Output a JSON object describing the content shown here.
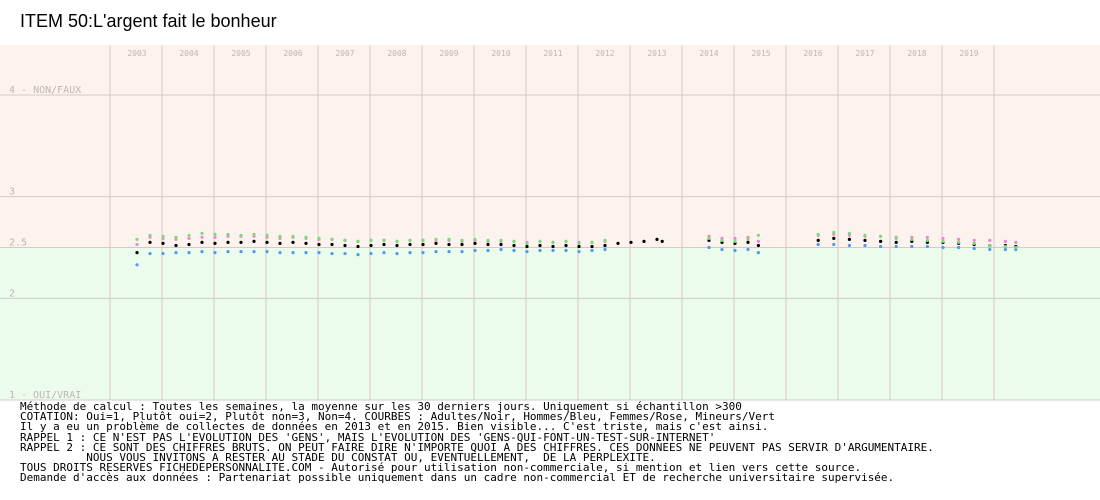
{
  "title": "ITEM 50:L'argent fait le bonheur",
  "chart_data": {
    "type": "scatter",
    "title": "ITEM 50:L'argent fait le bonheur",
    "xlabel": "",
    "ylabel": "",
    "x_ticks": [
      "2003",
      "2004",
      "2005",
      "2006",
      "2007",
      "2008",
      "2009",
      "2010",
      "2011",
      "2012",
      "2013",
      "2014",
      "2015",
      "2016",
      "2017",
      "2018",
      "2019"
    ],
    "y_ticks": [
      {
        "value": 4,
        "label": "4 - NON/FAUX"
      },
      {
        "value": 3,
        "label": "3"
      },
      {
        "value": 2.5,
        "label": "2.5"
      },
      {
        "value": 2,
        "label": "2"
      },
      {
        "value": 1,
        "label": "1 - OUI/VRAI"
      }
    ],
    "xlim": [
      2002.5,
      2020.0
    ],
    "ylim": [
      1.0,
      4.0
    ],
    "grid": true,
    "neutral_line": 2.5,
    "colors": {
      "top_band": "#fdf3ee",
      "bottom_band": "#ecfcec",
      "grid": "#d8c8c8",
      "tick_text": "#c0b4b4"
    },
    "series": [
      {
        "name": "Adultes/Noir",
        "color": "#000000",
        "points": [
          [
            2003.0,
            2.45
          ],
          [
            2003.25,
            2.55
          ],
          [
            2003.5,
            2.54
          ],
          [
            2003.75,
            2.52
          ],
          [
            2004.0,
            2.53
          ],
          [
            2004.25,
            2.55
          ],
          [
            2004.5,
            2.54
          ],
          [
            2004.75,
            2.55
          ],
          [
            2005.0,
            2.55
          ],
          [
            2005.25,
            2.56
          ],
          [
            2005.5,
            2.55
          ],
          [
            2005.75,
            2.54
          ],
          [
            2006.0,
            2.55
          ],
          [
            2006.25,
            2.54
          ],
          [
            2006.5,
            2.53
          ],
          [
            2006.75,
            2.53
          ],
          [
            2007.0,
            2.52
          ],
          [
            2007.25,
            2.51
          ],
          [
            2007.5,
            2.52
          ],
          [
            2007.75,
            2.53
          ],
          [
            2008.0,
            2.52
          ],
          [
            2008.25,
            2.53
          ],
          [
            2008.5,
            2.53
          ],
          [
            2008.75,
            2.54
          ],
          [
            2009.0,
            2.53
          ],
          [
            2009.25,
            2.53
          ],
          [
            2009.5,
            2.54
          ],
          [
            2009.75,
            2.53
          ],
          [
            2010.0,
            2.53
          ],
          [
            2010.25,
            2.52
          ],
          [
            2010.5,
            2.51
          ],
          [
            2010.75,
            2.52
          ],
          [
            2011.0,
            2.51
          ],
          [
            2011.25,
            2.52
          ],
          [
            2011.5,
            2.51
          ],
          [
            2011.75,
            2.51
          ],
          [
            2012.0,
            2.52
          ],
          [
            2012.25,
            2.54
          ],
          [
            2012.5,
            2.55
          ],
          [
            2012.75,
            2.56
          ],
          [
            2013.0,
            2.58
          ],
          [
            2013.1,
            2.56
          ],
          [
            2014.0,
            2.57
          ],
          [
            2014.25,
            2.55
          ],
          [
            2014.5,
            2.54
          ],
          [
            2014.75,
            2.55
          ],
          [
            2014.95,
            2.52
          ],
          [
            2016.1,
            2.57
          ],
          [
            2016.4,
            2.59
          ],
          [
            2016.7,
            2.58
          ],
          [
            2017.0,
            2.57
          ],
          [
            2017.3,
            2.56
          ],
          [
            2017.6,
            2.55
          ],
          [
            2017.9,
            2.56
          ],
          [
            2018.2,
            2.55
          ],
          [
            2018.5,
            2.55
          ],
          [
            2018.8,
            2.54
          ],
          [
            2019.1,
            2.53
          ],
          [
            2019.4,
            2.52
          ],
          [
            2019.7,
            2.52
          ],
          [
            2019.9,
            2.51
          ]
        ]
      },
      {
        "name": "Hommes/Bleu",
        "color": "#5599ee",
        "points": [
          [
            2003.0,
            2.33
          ],
          [
            2003.25,
            2.44
          ],
          [
            2003.5,
            2.44
          ],
          [
            2003.75,
            2.45
          ],
          [
            2004.0,
            2.45
          ],
          [
            2004.25,
            2.46
          ],
          [
            2004.5,
            2.45
          ],
          [
            2004.75,
            2.46
          ],
          [
            2005.0,
            2.46
          ],
          [
            2005.25,
            2.46
          ],
          [
            2005.5,
            2.46
          ],
          [
            2005.75,
            2.45
          ],
          [
            2006.0,
            2.45
          ],
          [
            2006.25,
            2.45
          ],
          [
            2006.5,
            2.45
          ],
          [
            2006.75,
            2.44
          ],
          [
            2007.0,
            2.44
          ],
          [
            2007.25,
            2.43
          ],
          [
            2007.5,
            2.44
          ],
          [
            2007.75,
            2.45
          ],
          [
            2008.0,
            2.44
          ],
          [
            2008.25,
            2.45
          ],
          [
            2008.5,
            2.45
          ],
          [
            2008.75,
            2.46
          ],
          [
            2009.0,
            2.46
          ],
          [
            2009.25,
            2.46
          ],
          [
            2009.5,
            2.47
          ],
          [
            2009.75,
            2.47
          ],
          [
            2010.0,
            2.48
          ],
          [
            2010.25,
            2.47
          ],
          [
            2010.5,
            2.46
          ],
          [
            2010.75,
            2.47
          ],
          [
            2011.0,
            2.47
          ],
          [
            2011.25,
            2.47
          ],
          [
            2011.5,
            2.46
          ],
          [
            2011.75,
            2.47
          ],
          [
            2012.0,
            2.48
          ],
          [
            2014.0,
            2.5
          ],
          [
            2014.25,
            2.48
          ],
          [
            2014.5,
            2.47
          ],
          [
            2014.75,
            2.48
          ],
          [
            2014.95,
            2.45
          ],
          [
            2016.1,
            2.53
          ],
          [
            2016.4,
            2.53
          ],
          [
            2016.7,
            2.52
          ],
          [
            2017.0,
            2.52
          ],
          [
            2017.3,
            2.51
          ],
          [
            2017.6,
            2.51
          ],
          [
            2017.9,
            2.51
          ],
          [
            2018.2,
            2.51
          ],
          [
            2018.5,
            2.5
          ],
          [
            2018.8,
            2.5
          ],
          [
            2019.1,
            2.49
          ],
          [
            2019.4,
            2.48
          ],
          [
            2019.7,
            2.48
          ],
          [
            2019.9,
            2.48
          ]
        ]
      },
      {
        "name": "Femmes/Rose",
        "color": "#ee88cc",
        "points": [
          [
            2003.0,
            2.53
          ],
          [
            2003.25,
            2.6
          ],
          [
            2003.5,
            2.59
          ],
          [
            2003.75,
            2.58
          ],
          [
            2004.0,
            2.59
          ],
          [
            2004.25,
            2.6
          ],
          [
            2004.5,
            2.6
          ],
          [
            2004.75,
            2.61
          ],
          [
            2005.0,
            2.61
          ],
          [
            2005.25,
            2.61
          ],
          [
            2005.5,
            2.6
          ],
          [
            2005.75,
            2.59
          ],
          [
            2006.0,
            2.6
          ],
          [
            2006.25,
            2.59
          ],
          [
            2006.5,
            2.58
          ],
          [
            2006.75,
            2.58
          ],
          [
            2007.0,
            2.57
          ],
          [
            2007.25,
            2.56
          ],
          [
            2007.5,
            2.57
          ],
          [
            2007.75,
            2.57
          ],
          [
            2008.0,
            2.56
          ],
          [
            2008.25,
            2.57
          ],
          [
            2008.5,
            2.57
          ],
          [
            2008.75,
            2.57
          ],
          [
            2009.0,
            2.57
          ],
          [
            2009.25,
            2.56
          ],
          [
            2009.5,
            2.57
          ],
          [
            2009.75,
            2.56
          ],
          [
            2010.0,
            2.56
          ],
          [
            2010.25,
            2.56
          ],
          [
            2010.5,
            2.55
          ],
          [
            2010.75,
            2.56
          ],
          [
            2011.0,
            2.55
          ],
          [
            2011.25,
            2.56
          ],
          [
            2011.5,
            2.55
          ],
          [
            2011.75,
            2.55
          ],
          [
            2012.0,
            2.56
          ],
          [
            2014.0,
            2.61
          ],
          [
            2014.25,
            2.59
          ],
          [
            2014.5,
            2.59
          ],
          [
            2014.75,
            2.6
          ],
          [
            2014.95,
            2.56
          ],
          [
            2016.1,
            2.62
          ],
          [
            2016.4,
            2.63
          ],
          [
            2016.7,
            2.62
          ],
          [
            2017.0,
            2.61
          ],
          [
            2017.3,
            2.61
          ],
          [
            2017.6,
            2.6
          ],
          [
            2017.9,
            2.6
          ],
          [
            2018.2,
            2.6
          ],
          [
            2018.5,
            2.59
          ],
          [
            2018.8,
            2.58
          ],
          [
            2019.1,
            2.57
          ],
          [
            2019.4,
            2.57
          ],
          [
            2019.7,
            2.56
          ],
          [
            2019.9,
            2.55
          ]
        ]
      },
      {
        "name": "Mineurs/Vert",
        "color": "#77dd77",
        "points": [
          [
            2003.0,
            2.58
          ],
          [
            2003.25,
            2.62
          ],
          [
            2003.5,
            2.61
          ],
          [
            2003.75,
            2.6
          ],
          [
            2004.0,
            2.62
          ],
          [
            2004.25,
            2.64
          ],
          [
            2004.5,
            2.63
          ],
          [
            2004.75,
            2.63
          ],
          [
            2005.0,
            2.62
          ],
          [
            2005.25,
            2.63
          ],
          [
            2005.5,
            2.62
          ],
          [
            2005.75,
            2.61
          ],
          [
            2006.0,
            2.61
          ],
          [
            2006.25,
            2.6
          ],
          [
            2006.5,
            2.59
          ],
          [
            2006.75,
            2.58
          ],
          [
            2007.0,
            2.57
          ],
          [
            2007.25,
            2.56
          ],
          [
            2007.5,
            2.57
          ],
          [
            2007.75,
            2.57
          ],
          [
            2008.0,
            2.56
          ],
          [
            2008.25,
            2.57
          ],
          [
            2008.5,
            2.57
          ],
          [
            2008.75,
            2.58
          ],
          [
            2009.0,
            2.58
          ],
          [
            2009.25,
            2.57
          ],
          [
            2009.5,
            2.58
          ],
          [
            2009.75,
            2.57
          ],
          [
            2010.0,
            2.57
          ],
          [
            2010.25,
            2.56
          ],
          [
            2010.5,
            2.54
          ],
          [
            2010.75,
            2.56
          ],
          [
            2011.0,
            2.55
          ],
          [
            2011.25,
            2.56
          ],
          [
            2011.5,
            2.54
          ],
          [
            2011.75,
            2.55
          ],
          [
            2012.0,
            2.57
          ],
          [
            2014.0,
            2.59
          ],
          [
            2014.25,
            2.57
          ],
          [
            2014.5,
            2.56
          ],
          [
            2014.75,
            2.58
          ],
          [
            2014.95,
            2.62
          ],
          [
            2016.1,
            2.63
          ],
          [
            2016.4,
            2.65
          ],
          [
            2016.7,
            2.64
          ],
          [
            2017.0,
            2.62
          ],
          [
            2017.3,
            2.61
          ],
          [
            2017.6,
            2.59
          ],
          [
            2017.9,
            2.58
          ],
          [
            2018.2,
            2.57
          ],
          [
            2018.5,
            2.56
          ],
          [
            2018.8,
            2.55
          ],
          [
            2019.1,
            2.54
          ],
          [
            2019.4,
            2.52
          ],
          [
            2019.7,
            2.51
          ],
          [
            2019.9,
            2.5
          ]
        ]
      }
    ]
  },
  "notes": [
    "Méthode de calcul : Toutes les semaines, la moyenne sur les 30 derniers jours. Uniquement si échantillon >300",
    "COTATION: Oui=1, Plutôt oui=2, Plutôt non=3, Non=4. COURBES : Adultes/Noir, Hommes/Bleu, Femmes/Rose, Mineurs/Vert",
    "Il y a eu un problème de collectes de données en 2013 et en 2015. Bien visible... C'est triste, mais c'est ainsi.",
    "RAPPEL 1 : CE N'EST PAS L'EVOLUTION DES 'GENS', MAIS L'EVOLUTION DES 'GENS-QUI-FONT-UN-TEST-SUR-INTERNET'",
    "RAPPEL 2 : CE SONT DES CHIFFRES BRUTS. ON PEUT FAIRE DIRE N'IMPORTE QUOI A DES CHIFFRES. CES DONNEES NE PEUVENT PAS SERVIR D'ARGUMENTAIRE.",
    "          NOUS VOUS INVITONS A RESTER AU STADE DU CONSTAT OU, EVENTUELLEMENT,  DE LA PERPLEXITE.",
    "TOUS DROITS RESERVES FICHEDEPERSONNALITE.COM - Autorisé pour utilisation non-commerciale, si mention et lien vers cette source.",
    "Demande d'accès aux données : Partenariat possible uniquement dans un cadre non-commercial ET de recherche universitaire supervisée."
  ]
}
